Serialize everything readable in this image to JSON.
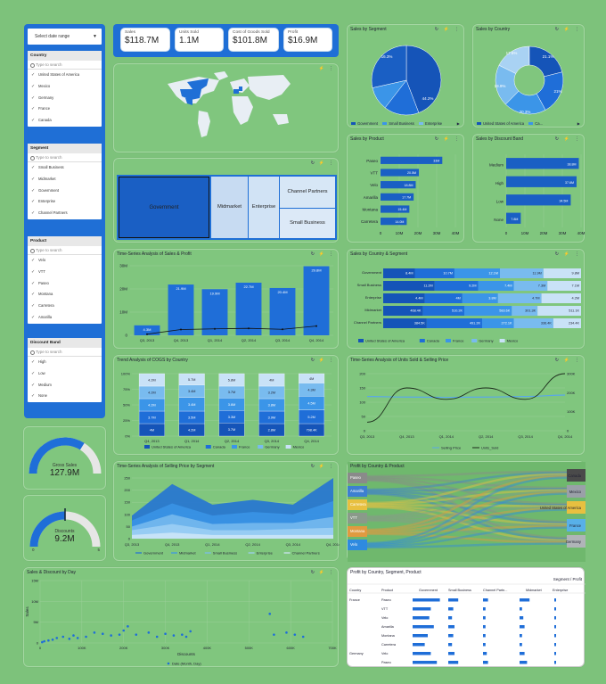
{
  "colors": {
    "bg": "#7dc27b",
    "panel": "#1f6fd6",
    "c1": "#1f6ed8",
    "c2": "#1554b8",
    "c3": "#3b95e8",
    "c4": "#79bbef",
    "c5": "#bfdcf6"
  },
  "icons": [
    "bolt-icon",
    "refresh-icon",
    "more-vert-icon",
    "map-icon"
  ],
  "filters": {
    "date_range": "Select date range",
    "groups": [
      {
        "title": "Country",
        "search": "Type to search",
        "items": [
          "United States of America",
          "Mexico",
          "Germany",
          "France",
          "Canada"
        ]
      },
      {
        "title": "Segment",
        "search": "Type to search",
        "items": [
          "Small Business",
          "Midmarket",
          "Government",
          "Enterprise",
          "Channel Partners"
        ]
      },
      {
        "title": "Product",
        "search": "Type to search",
        "items": [
          "Velo",
          "VTT",
          "Paseo",
          "Montana",
          "Carretera",
          "Amarilla"
        ]
      },
      {
        "title": "Discount Band",
        "search": "Type to search",
        "items": [
          "High",
          "Low",
          "Medium",
          "None"
        ]
      }
    ]
  },
  "kpis": [
    {
      "label": "Sales",
      "value": "$118.7M"
    },
    {
      "label": "Units Sold",
      "value": "1.1M"
    },
    {
      "label": "Cost of Goods Sold",
      "value": "$101.8M"
    },
    {
      "label": "Profit",
      "value": "$16.9M"
    }
  ],
  "gauges": [
    {
      "label": "Gross Sales",
      "value": "127.9M",
      "fill": 0.68
    },
    {
      "label": "Discounts",
      "value": "9.2M",
      "min": "0",
      "max": "5",
      "fill": 0.5
    }
  ],
  "treemap": {
    "cells": [
      "Government",
      "Midmarket",
      "Enterprise",
      "Channel Partners",
      "Small Business"
    ]
  },
  "sales_by_segment": {
    "title": "Sales by Segment",
    "labels": [
      "44.2%",
      "16.3%"
    ],
    "legend": [
      "Government",
      "Small Business",
      "Enterprise"
    ],
    "page": "1/2"
  },
  "sales_by_country": {
    "title": "Sales by Country",
    "labels": [
      "21.1%",
      "21%",
      "20.3%",
      "19.9%",
      "17.6%"
    ],
    "legend": [
      "United States of America",
      "Ca..."
    ],
    "page": "1/2"
  },
  "sales_by_product": {
    "title": "Sales by Product",
    "categories": [
      "Paseo",
      "VTT",
      "Velo",
      "Amarilla",
      "Montana",
      "Carretera"
    ],
    "labels": [
      "33M",
      "20.5M",
      "18.8M",
      "17.7M",
      "15.4M",
      "14.0M"
    ],
    "values": [
      33,
      20.5,
      18.8,
      17.7,
      15.4,
      14.0
    ],
    "xticks": [
      "0",
      "10M",
      "20M",
      "30M",
      "40M"
    ],
    "max": 40
  },
  "sales_by_discount": {
    "title": "Sales by Discount Band",
    "categories": [
      "Medium",
      "High",
      "Low",
      "None"
    ],
    "labels": [
      "38.8M",
      "37.6M",
      "34.5M",
      "7.8M"
    ],
    "values": [
      38.8,
      37.6,
      34.5,
      7.8
    ],
    "xticks": [
      "0",
      "10M",
      "20M",
      "30M",
      "40M"
    ],
    "max": 40
  },
  "ts_sales_profit": {
    "title": "Time-Series Analysis of Sales & Profit",
    "categories": [
      "Q3, 2013",
      "Q4, 2013",
      "Q1, 2014",
      "Q2, 2014",
      "Q3, 2014",
      "Q4, 2014"
    ],
    "labels": [
      "4.3M",
      "21.9M",
      "19.9M",
      "22.7M",
      "20.4M",
      "29.8M"
    ],
    "values": [
      4.3,
      21.9,
      19.9,
      22.7,
      20.4,
      29.8
    ],
    "profit": [
      0.5,
      2.5,
      2.8,
      3.0,
      2.6,
      4.0
    ],
    "yticks": [
      "0",
      "10M",
      "20M",
      "30M"
    ],
    "max": 30
  },
  "country_segment": {
    "title": "Sales by Country & Segment",
    "rows": [
      "Government",
      "Small Business",
      "Enterprise",
      "Midmarket",
      "Channel Partners"
    ],
    "values": [
      [
        "8.4M",
        "10.7M",
        "12.1M",
        "11.9M",
        "9.8M"
      ],
      [
        "11.2M",
        "9.2M",
        "7.4M",
        "7.3M",
        "7.1M"
      ],
      [
        "4.4M",
        "4M",
        "3.8M",
        "4.7M",
        "4.2M"
      ],
      [
        "468.4K",
        "510.2K",
        "583.6K",
        "301.3K",
        "511.1K"
      ],
      [
        "384.5K",
        "491.2K",
        "272.1K",
        "336.4K",
        "234.4K"
      ]
    ],
    "widths": [
      [
        0.16,
        0.2,
        0.23,
        0.22,
        0.19
      ],
      [
        0.26,
        0.22,
        0.18,
        0.17,
        0.17
      ],
      [
        0.21,
        0.19,
        0.18,
        0.22,
        0.2
      ],
      [
        0.2,
        0.21,
        0.24,
        0.13,
        0.22
      ],
      [
        0.22,
        0.28,
        0.16,
        0.2,
        0.14
      ]
    ],
    "legend": [
      "United States of America",
      "Canada",
      "France",
      "Germany",
      "Mexico"
    ]
  },
  "cogs": {
    "title": "Trend Analysis of COGS by Country",
    "categories": [
      "Q4, 2013",
      "Q1, 2014",
      "Q2, 2014",
      "Q3, 2014",
      "Q4, 2014"
    ],
    "stacks": [
      [
        "4.2M",
        "5.7M",
        "5.8M",
        "4M",
        "4M"
      ],
      [
        "4.2M",
        "3.4M",
        "3.7M",
        "3.2M",
        "4.3M"
      ],
      [
        "4.2M",
        "3.4M",
        "3.6M",
        "3.8M",
        "4.5M"
      ],
      [
        "3.7M",
        "3.5M",
        "3.3M",
        "3.9M",
        "5.2M"
      ],
      [
        "4M",
        "4.2M",
        "3.7M",
        "2.8M",
        "798.4K"
      ]
    ],
    "shares": [
      [
        0.2,
        0.2,
        0.2,
        0.2,
        0.2
      ],
      [
        0.2,
        0.2,
        0.22,
        0.2,
        0.18
      ],
      [
        0.21,
        0.2,
        0.2,
        0.19,
        0.2
      ],
      [
        0.2,
        0.2,
        0.2,
        0.2,
        0.2
      ],
      [
        0.2,
        0.22,
        0.22,
        0.21,
        0.15
      ]
    ],
    "legend": [
      "United States of America",
      "Canada",
      "France",
      "Germany",
      "Mexico"
    ],
    "yticks": [
      "0%",
      "25%",
      "50%",
      "75%",
      "100%"
    ]
  },
  "units_price": {
    "title": "Time-Series Analysis of Units Sold & Selling Price",
    "categories": [
      "Q3, 2013",
      "Q4, 2013",
      "Q1, 2014",
      "Q2, 2014",
      "Q3, 2014",
      "Q4, 2014"
    ],
    "yleft": [
      "0",
      "50",
      "100",
      "150",
      "200"
    ],
    "yright": [
      "0",
      "100K",
      "200K",
      "300K"
    ],
    "legend": [
      "Selling Price",
      "Units_Sold"
    ],
    "price": [
      120,
      118,
      117,
      118,
      120,
      125
    ],
    "units": [
      30,
      150,
      110,
      150,
      110,
      200
    ]
  },
  "price_segment": {
    "title": "Time-Series Analysis of Selling Price by Segment",
    "categories": [
      "Q3, 2013",
      "Q4, 2013",
      "Q1, 2014",
      "Q2, 2014",
      "Q3, 2014",
      "Q4, 2014"
    ],
    "yticks": [
      "0",
      "50",
      "100",
      "150",
      "200",
      "250"
    ],
    "legend": [
      "Government",
      "Midmarket",
      "Small Business",
      "Enterprise",
      "Channel Partners"
    ],
    "series": [
      [
        20,
        80,
        45,
        50,
        40,
        95
      ],
      [
        25,
        45,
        35,
        45,
        35,
        65
      ],
      [
        15,
        40,
        25,
        30,
        25,
        45
      ],
      [
        20,
        35,
        20,
        20,
        25,
        30
      ],
      [
        15,
        25,
        15,
        15,
        15,
        15
      ]
    ]
  },
  "sankey": {
    "title": "Profit by Country & Product",
    "left": [
      "Paseo",
      "Amarilla",
      "Carretera",
      "VTT",
      "Montana",
      "Velo"
    ],
    "right": [
      "Canada",
      "Mexico",
      "United States of America",
      "France",
      "Germany"
    ]
  },
  "scatter": {
    "title": "Sales & Discount by Day",
    "xlabel": "Discounts",
    "ylabel": "Sales",
    "legend": "Date (Month, Day)",
    "xticks": [
      "0",
      "100K",
      "200K",
      "300K",
      "400K",
      "500K",
      "600K",
      "700K"
    ],
    "yticks": [
      "0",
      "5M",
      "10M",
      "15M"
    ],
    "points": [
      [
        5,
        0.2
      ],
      [
        10,
        0.4
      ],
      [
        20,
        0.6
      ],
      [
        30,
        0.8
      ],
      [
        40,
        1.2
      ],
      [
        55,
        1.5
      ],
      [
        70,
        1.0
      ],
      [
        80,
        1.8
      ],
      [
        90,
        1.2
      ],
      [
        110,
        1.5
      ],
      [
        130,
        2.5
      ],
      [
        150,
        2.2
      ],
      [
        170,
        1.8
      ],
      [
        190,
        2.0
      ],
      [
        200,
        3.0
      ],
      [
        210,
        4.0
      ],
      [
        230,
        2.0
      ],
      [
        260,
        2.5
      ],
      [
        280,
        1.5
      ],
      [
        300,
        2.2
      ],
      [
        320,
        1.8
      ],
      [
        340,
        2.0
      ],
      [
        350,
        1.5
      ],
      [
        360,
        2.8
      ],
      [
        550,
        7.0
      ],
      [
        560,
        2.0
      ],
      [
        590,
        2.5
      ],
      [
        610,
        2.0
      ],
      [
        630,
        1.5
      ]
    ]
  },
  "pivot": {
    "title": "Profit by Country, Segment, Product",
    "header": "Segment / Profit",
    "columns": [
      "Country",
      "Product",
      "Government",
      "Small Business",
      "Channel Partn...",
      "Midmarket",
      "Enterprise"
    ],
    "rows": [
      [
        "France",
        "Paseo"
      ],
      [
        "",
        "VTT"
      ],
      [
        "",
        "Velo"
      ],
      [
        "",
        "Amarilla"
      ],
      [
        "",
        "Montana"
      ],
      [
        "",
        "Carretera"
      ],
      [
        "Germany",
        "Velo"
      ],
      [
        "",
        "Paseo"
      ]
    ],
    "bars": [
      [
        0.9,
        0.4,
        0.2,
        0.4,
        0.1
      ],
      [
        0.6,
        0.2,
        0.1,
        0.1,
        0.1
      ],
      [
        0.55,
        0.15,
        0.1,
        0.15,
        0.1
      ],
      [
        0.7,
        0.25,
        0.1,
        0.2,
        0.1
      ],
      [
        0.5,
        0.2,
        0.1,
        0.1,
        0.1
      ],
      [
        0.4,
        0.15,
        0.1,
        0.1,
        0.1
      ],
      [
        0.6,
        0.25,
        0.15,
        0.2,
        0.1
      ],
      [
        0.8,
        0.4,
        0.2,
        0.3,
        0.1
      ]
    ]
  },
  "empty_title": ""
}
